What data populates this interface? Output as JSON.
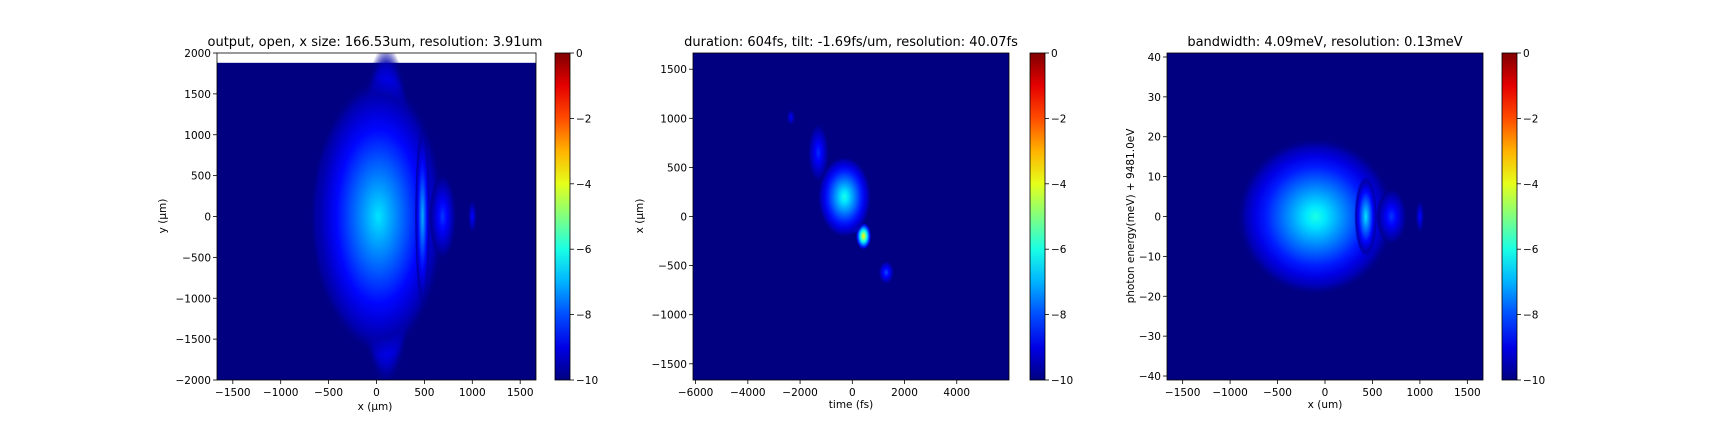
{
  "figure": {
    "background": "#ffffff",
    "colormap": "jet",
    "plot_background": "#00008f"
  },
  "chart_data": [
    {
      "type": "heatmap",
      "title": "output, open, x size: 166.53um, resolution: 3.91um",
      "xlabel": "x (μm)",
      "ylabel": "y (μm)",
      "xlim": [
        -1665,
        1665
      ],
      "ylim": [
        -2000,
        2000
      ],
      "data_extent_y": [
        -2000,
        1880
      ],
      "xticks": [
        -1500,
        -1000,
        -500,
        0,
        500,
        1000,
        1500
      ],
      "yticks": [
        -2000,
        -1500,
        -1000,
        -500,
        0,
        500,
        1000,
        1500,
        2000
      ],
      "colorbar": {
        "range": [
          -10,
          0
        ],
        "ticks": [
          0,
          -2,
          -4,
          -6,
          -8,
          -10
        ],
        "tick_labels": [
          "0",
          "−2",
          "−4",
          "−6",
          "−8",
          "−10"
        ]
      },
      "features": [
        {
          "x": -30,
          "y": 0,
          "sx": 110,
          "sy": 330,
          "value": 0
        },
        {
          "x": -60,
          "y": 480,
          "sx": 120,
          "sy": 250,
          "value": -3
        },
        {
          "x": -60,
          "y": -600,
          "sx": 120,
          "sy": 220,
          "value": -3
        },
        {
          "x": 290,
          "y": 0,
          "sx": 45,
          "sy": 180,
          "value": -3
        },
        {
          "x": 100,
          "y": 0,
          "sx": 160,
          "sy": 1050,
          "value": -5
        },
        {
          "x": -250,
          "y": 0,
          "sx": 220,
          "sy": 650,
          "value": -6
        },
        {
          "x": 20,
          "y": 0,
          "sx": 350,
          "sy": 850,
          "value": -6.5
        },
        {
          "x": 480,
          "y": 0,
          "sx": 40,
          "sy": 550,
          "value": -7
        },
        {
          "x": 690,
          "y": 0,
          "sx": 70,
          "sy": 260,
          "value": -8.2
        },
        {
          "x": 1000,
          "y": 0,
          "sx": 22,
          "sy": 100,
          "value": -8.7
        }
      ]
    },
    {
      "type": "heatmap",
      "title": "duration: 604fs, tilt: -1.69fs/um, resolution: 40.07fs",
      "xlabel": "time (fs)",
      "ylabel": "x (μm)",
      "xlim": [
        -6100,
        6000
      ],
      "ylim": [
        -1665,
        1665
      ],
      "xticks": [
        -6000,
        -4000,
        -2000,
        0,
        2000,
        4000
      ],
      "yticks": [
        -1500,
        -1000,
        -500,
        0,
        500,
        1000,
        1500
      ],
      "colorbar": {
        "range": [
          -10,
          0
        ],
        "ticks": [
          0,
          -2,
          -4,
          -6,
          -8,
          -10
        ],
        "tick_labels": [
          "0",
          "−2",
          "−4",
          "−6",
          "−8",
          "−10"
        ]
      },
      "features": [
        {
          "x": 0,
          "y": 0,
          "sx": 200,
          "sy": 90,
          "value": 0
        },
        {
          "x": -800,
          "y": 320,
          "sx": 120,
          "sy": 55,
          "value": -3
        },
        {
          "x": 430,
          "y": -200,
          "sx": 150,
          "sy": 70,
          "value": -3.5
        },
        {
          "x": -300,
          "y": 200,
          "sx": 520,
          "sy": 210,
          "value": -6
        },
        {
          "x": 1300,
          "y": -570,
          "sx": 150,
          "sy": 60,
          "value": -8
        },
        {
          "x": -1300,
          "y": 650,
          "sx": 200,
          "sy": 150,
          "value": -8.3
        },
        {
          "x": -2350,
          "y": 1010,
          "sx": 80,
          "sy": 40,
          "value": -8.8
        }
      ]
    },
    {
      "type": "heatmap",
      "title": "bandwidth: 4.09meV, resolution: 0.13meV",
      "xlabel": "x (um)",
      "ylabel": "photon energy(meV) + 9481.0eV",
      "xlim": [
        -1665,
        1665
      ],
      "ylim": [
        -41,
        41
      ],
      "xticks": [
        -1500,
        -1000,
        -500,
        0,
        500,
        1000,
        1500
      ],
      "yticks": [
        -40,
        -30,
        -20,
        -10,
        0,
        10,
        20,
        30,
        40
      ],
      "colorbar": {
        "range": [
          -10,
          0
        ],
        "ticks": [
          0,
          -2,
          -4,
          -6,
          -8,
          -10
        ],
        "tick_labels": [
          "0",
          "−2",
          "−4",
          "−6",
          "−8",
          "−10"
        ]
      },
      "features": [
        {
          "x": -50,
          "y": 0,
          "sx": 100,
          "sy": 5.5,
          "value": 0
        },
        {
          "x": 190,
          "y": 0,
          "sx": 50,
          "sy": 4,
          "value": -4.5
        },
        {
          "x": -100,
          "y": 0,
          "sx": 420,
          "sy": 10,
          "value": -6
        },
        {
          "x": 430,
          "y": 0,
          "sx": 60,
          "sy": 5,
          "value": -6.5
        },
        {
          "x": 700,
          "y": 0,
          "sx": 80,
          "sy": 3.5,
          "value": -8.2
        },
        {
          "x": 1000,
          "y": 0,
          "sx": 22,
          "sy": 2,
          "value": -8.7
        }
      ]
    }
  ]
}
